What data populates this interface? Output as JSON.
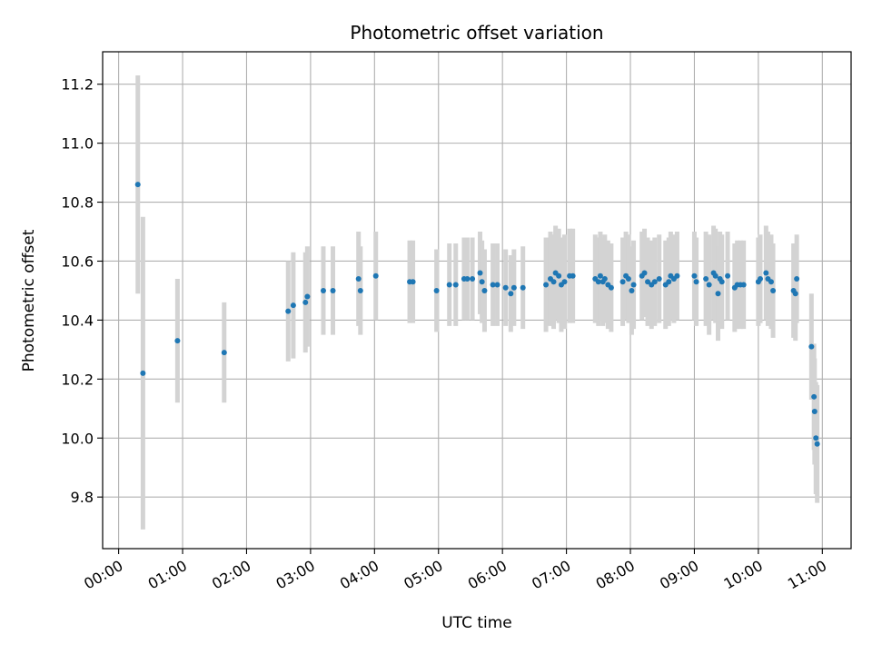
{
  "chart_data": {
    "type": "scatter",
    "title": "Photometric offset variation",
    "xlabel": "UTC time",
    "ylabel": "Photometric offset",
    "xlim": [
      -0.25,
      11.45
    ],
    "ylim": [
      9.625,
      11.31
    ],
    "grid": true,
    "x_ticks": [
      0,
      1,
      2,
      3,
      4,
      5,
      6,
      7,
      8,
      9,
      10,
      11
    ],
    "x_tick_labels": [
      "00:00",
      "01:00",
      "02:00",
      "03:00",
      "04:00",
      "05:00",
      "06:00",
      "07:00",
      "08:00",
      "09:00",
      "10:00",
      "11:00"
    ],
    "y_ticks": [
      9.8,
      10.0,
      10.2,
      10.4,
      10.6,
      10.8,
      11.0,
      11.2
    ],
    "y_tick_labels": [
      "9.8",
      "10.0",
      "10.2",
      "10.4",
      "10.6",
      "10.8",
      "11.0",
      "11.2"
    ],
    "point_color": "#1f77b4",
    "errorbar_color": "#d3d3d3",
    "series": [
      {
        "name": "Photometric offset",
        "x": [
          0.3,
          0.38,
          0.92,
          1.65,
          2.65,
          2.73,
          2.92,
          2.95,
          3.2,
          3.35,
          3.75,
          3.78,
          4.02,
          4.55,
          4.6,
          4.97,
          5.17,
          5.27,
          5.4,
          5.45,
          5.53,
          5.65,
          5.68,
          5.72,
          5.85,
          5.92,
          6.05,
          6.13,
          6.18,
          6.32,
          6.68,
          6.75,
          6.8,
          6.83,
          6.88,
          6.92,
          6.97,
          7.05,
          7.1,
          7.45,
          7.5,
          7.53,
          7.57,
          7.6,
          7.65,
          7.7,
          7.88,
          7.93,
          7.97,
          8.02,
          8.05,
          8.18,
          8.22,
          8.27,
          8.33,
          8.38,
          8.45,
          8.55,
          8.6,
          8.63,
          8.68,
          8.73,
          9.0,
          9.03,
          9.18,
          9.23,
          9.3,
          9.33,
          9.37,
          9.4,
          9.43,
          9.52,
          9.63,
          9.67,
          9.72,
          9.77,
          10.0,
          10.03,
          10.12,
          10.15,
          10.2,
          10.23,
          10.55,
          10.58,
          10.6,
          10.83,
          10.87,
          10.88,
          10.9,
          10.92
        ],
        "y": [
          10.86,
          10.22,
          10.33,
          10.29,
          10.43,
          10.45,
          10.46,
          10.48,
          10.5,
          10.5,
          10.54,
          10.5,
          10.55,
          10.53,
          10.53,
          10.5,
          10.52,
          10.52,
          10.54,
          10.54,
          10.54,
          10.56,
          10.53,
          10.5,
          10.52,
          10.52,
          10.51,
          10.49,
          10.51,
          10.51,
          10.52,
          10.54,
          10.53,
          10.56,
          10.55,
          10.52,
          10.53,
          10.55,
          10.55,
          10.54,
          10.53,
          10.55,
          10.53,
          10.54,
          10.52,
          10.51,
          10.53,
          10.55,
          10.54,
          10.5,
          10.52,
          10.55,
          10.56,
          10.53,
          10.52,
          10.53,
          10.54,
          10.52,
          10.53,
          10.55,
          10.54,
          10.55,
          10.55,
          10.53,
          10.54,
          10.52,
          10.56,
          10.55,
          10.49,
          10.54,
          10.53,
          10.55,
          10.51,
          10.52,
          10.52,
          10.52,
          10.53,
          10.54,
          10.56,
          10.54,
          10.53,
          10.5,
          10.5,
          10.49,
          10.54,
          10.31,
          10.14,
          10.09,
          10.0,
          9.98
        ],
        "yerr": [
          0.37,
          0.53,
          0.21,
          0.17,
          0.17,
          0.18,
          0.17,
          0.17,
          0.15,
          0.15,
          0.16,
          0.15,
          0.15,
          0.14,
          0.14,
          0.14,
          0.14,
          0.14,
          0.14,
          0.14,
          0.14,
          0.14,
          0.14,
          0.14,
          0.14,
          0.14,
          0.13,
          0.13,
          0.13,
          0.14,
          0.16,
          0.16,
          0.16,
          0.16,
          0.16,
          0.16,
          0.16,
          0.16,
          0.16,
          0.15,
          0.15,
          0.15,
          0.15,
          0.15,
          0.15,
          0.15,
          0.15,
          0.15,
          0.15,
          0.15,
          0.15,
          0.15,
          0.15,
          0.15,
          0.15,
          0.15,
          0.15,
          0.15,
          0.15,
          0.15,
          0.15,
          0.15,
          0.15,
          0.15,
          0.16,
          0.17,
          0.16,
          0.16,
          0.16,
          0.16,
          0.16,
          0.15,
          0.15,
          0.15,
          0.15,
          0.15,
          0.15,
          0.15,
          0.16,
          0.16,
          0.16,
          0.16,
          0.16,
          0.16,
          0.15,
          0.18,
          0.18,
          0.18,
          0.19,
          0.2
        ]
      }
    ]
  }
}
